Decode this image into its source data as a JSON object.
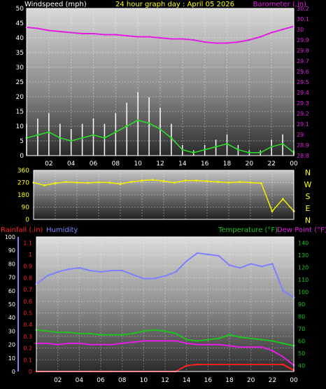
{
  "title": "24 hour graph day : April 05 2026",
  "wind": {
    "label_left": "Windspeed (mph)",
    "label_right": "Barometer (.in)",
    "y_ticks": [
      "0",
      "5",
      "10",
      "15",
      "20",
      "25",
      "30",
      "35",
      "40",
      "45",
      "50"
    ],
    "baro_ticks": [
      "28.8",
      "28.9",
      "29",
      "29.1",
      "29.2",
      "29.3",
      "29.4",
      "29.5",
      "29.6",
      "29.7",
      "29.8",
      "29.9",
      "30",
      "30.1",
      "30.2"
    ],
    "x_ticks": [
      "02",
      "04",
      "06",
      "08",
      "10",
      "12",
      "14",
      "16",
      "18",
      "20",
      "22",
      "00"
    ]
  },
  "dir": {
    "y_ticks": [
      "0",
      "90",
      "180",
      "270",
      "360"
    ],
    "compass": [
      "N",
      "W",
      "S",
      "E",
      "N"
    ]
  },
  "bottom": {
    "label_rain": "Rainfall (.in)",
    "label_hum": "Humidity",
    "label_temp": "Temperature (°F)",
    "label_dew": "Dew Point (°F)",
    "hum_ticks": [
      "0",
      "10",
      "20",
      "30",
      "40",
      "50",
      "60",
      "70",
      "80",
      "90",
      "100"
    ],
    "rain_ticks": [
      "0",
      "0.1",
      "0.2",
      "0.3",
      "0.4",
      "0.5",
      "0.6",
      "0.7",
      "0.8",
      "0.9",
      "1",
      "1.1"
    ],
    "temp_ticks": [
      "40",
      "50",
      "60",
      "70",
      "80",
      "90",
      "100",
      "110",
      "120",
      "130",
      "140"
    ]
  },
  "colors": {
    "wind": "#30e030",
    "gust": "#ffffff",
    "baro": "#e020e0",
    "dir": "#f0f000",
    "rain": "#ff2020",
    "humidity": "#8080ff",
    "temperature": "#20c020",
    "dewpoint": "#e020e0",
    "rain_hourly": "#c8a000",
    "title": "#ffff00"
  },
  "chart_data": [
    {
      "type": "line",
      "title": "24 hour graph day : April 05 2026",
      "xlabel": "",
      "ylabel": "Windspeed (mph)",
      "ylim": [
        0,
        50
      ],
      "y2label": "Barometer (.in)",
      "y2lim": [
        28.8,
        30.2
      ],
      "x": [
        0,
        1,
        2,
        3,
        4,
        5,
        6,
        7,
        8,
        9,
        10,
        11,
        12,
        13,
        14,
        15,
        16,
        17,
        18,
        19,
        20,
        21,
        22,
        23,
        24
      ],
      "series": [
        {
          "name": "Windspeed (mph)",
          "axis": "y",
          "values": [
            6,
            7,
            8,
            6,
            5,
            6,
            7,
            6,
            8,
            10,
            12,
            11,
            9,
            6,
            2,
            1,
            2,
            3,
            4,
            2,
            1,
            1,
            3,
            4,
            1
          ]
        },
        {
          "name": "Barometer (.in)",
          "axis": "y2",
          "values": [
            30.02,
            30.01,
            29.99,
            29.98,
            29.97,
            29.96,
            29.96,
            29.95,
            29.95,
            29.94,
            29.93,
            29.93,
            29.92,
            29.91,
            29.91,
            29.9,
            29.88,
            29.87,
            29.87,
            29.88,
            29.9,
            29.93,
            29.97,
            30.0,
            30.03
          ]
        }
      ]
    },
    {
      "type": "scatter",
      "title": "",
      "ylabel": "",
      "ylim": [
        0,
        360
      ],
      "x": [
        0,
        1,
        2,
        3,
        4,
        5,
        6,
        7,
        8,
        9,
        10,
        11,
        12,
        13,
        14,
        15,
        16,
        17,
        18,
        19,
        20,
        21,
        22,
        23,
        24
      ],
      "series": [
        {
          "name": "",
          "values": [
            270,
            250,
            265,
            275,
            270,
            268,
            272,
            270,
            260,
            275,
            285,
            290,
            280,
            270,
            285,
            285,
            280,
            275,
            270,
            275,
            270,
            265,
            60,
            150,
            60
          ]
        }
      ]
    },
    {
      "type": "line",
      "title": "",
      "ylabel": "Humidity",
      "ylim": [
        0,
        100
      ],
      "y_rain_lim": [
        0,
        1.15
      ],
      "y_temp_lim": [
        35,
        145
      ],
      "x": [
        0,
        1,
        2,
        3,
        4,
        5,
        6,
        7,
        8,
        9,
        10,
        11,
        12,
        13,
        14,
        15,
        16,
        17,
        18,
        19,
        20,
        21,
        22,
        23,
        24
      ],
      "series": [
        {
          "name": "Humidity",
          "axis": "hum",
          "values": [
            65,
            71,
            74,
            76,
            77,
            75,
            74,
            75,
            75,
            72,
            69,
            69,
            71,
            74,
            82,
            88,
            87,
            86,
            79,
            77,
            80,
            78,
            80,
            60,
            55
          ]
        },
        {
          "name": "Temperature (°F)",
          "axis": "temp",
          "values": [
            69,
            68,
            67,
            67,
            66,
            66,
            65,
            65,
            65,
            66,
            68,
            69,
            68,
            66,
            61,
            60,
            61,
            62,
            65,
            63,
            62,
            61,
            60,
            58,
            56
          ]
        },
        {
          "name": "Dew Point (°F)",
          "axis": "temp",
          "values": [
            58,
            58,
            57,
            58,
            58,
            57,
            57,
            57,
            58,
            59,
            60,
            60,
            60,
            60,
            58,
            57,
            57,
            57,
            56,
            55,
            55,
            55,
            52,
            47,
            40
          ]
        },
        {
          "name": "Rainfall (.in)",
          "axis": "rain",
          "values": [
            0,
            0,
            0,
            0,
            0,
            0,
            0,
            0,
            0,
            0,
            0,
            0,
            0,
            0,
            0.05,
            0.06,
            0.06,
            0.06,
            0.06,
            0.06,
            0.06,
            0.06,
            0.06,
            0.06,
            0.01
          ]
        }
      ]
    }
  ]
}
